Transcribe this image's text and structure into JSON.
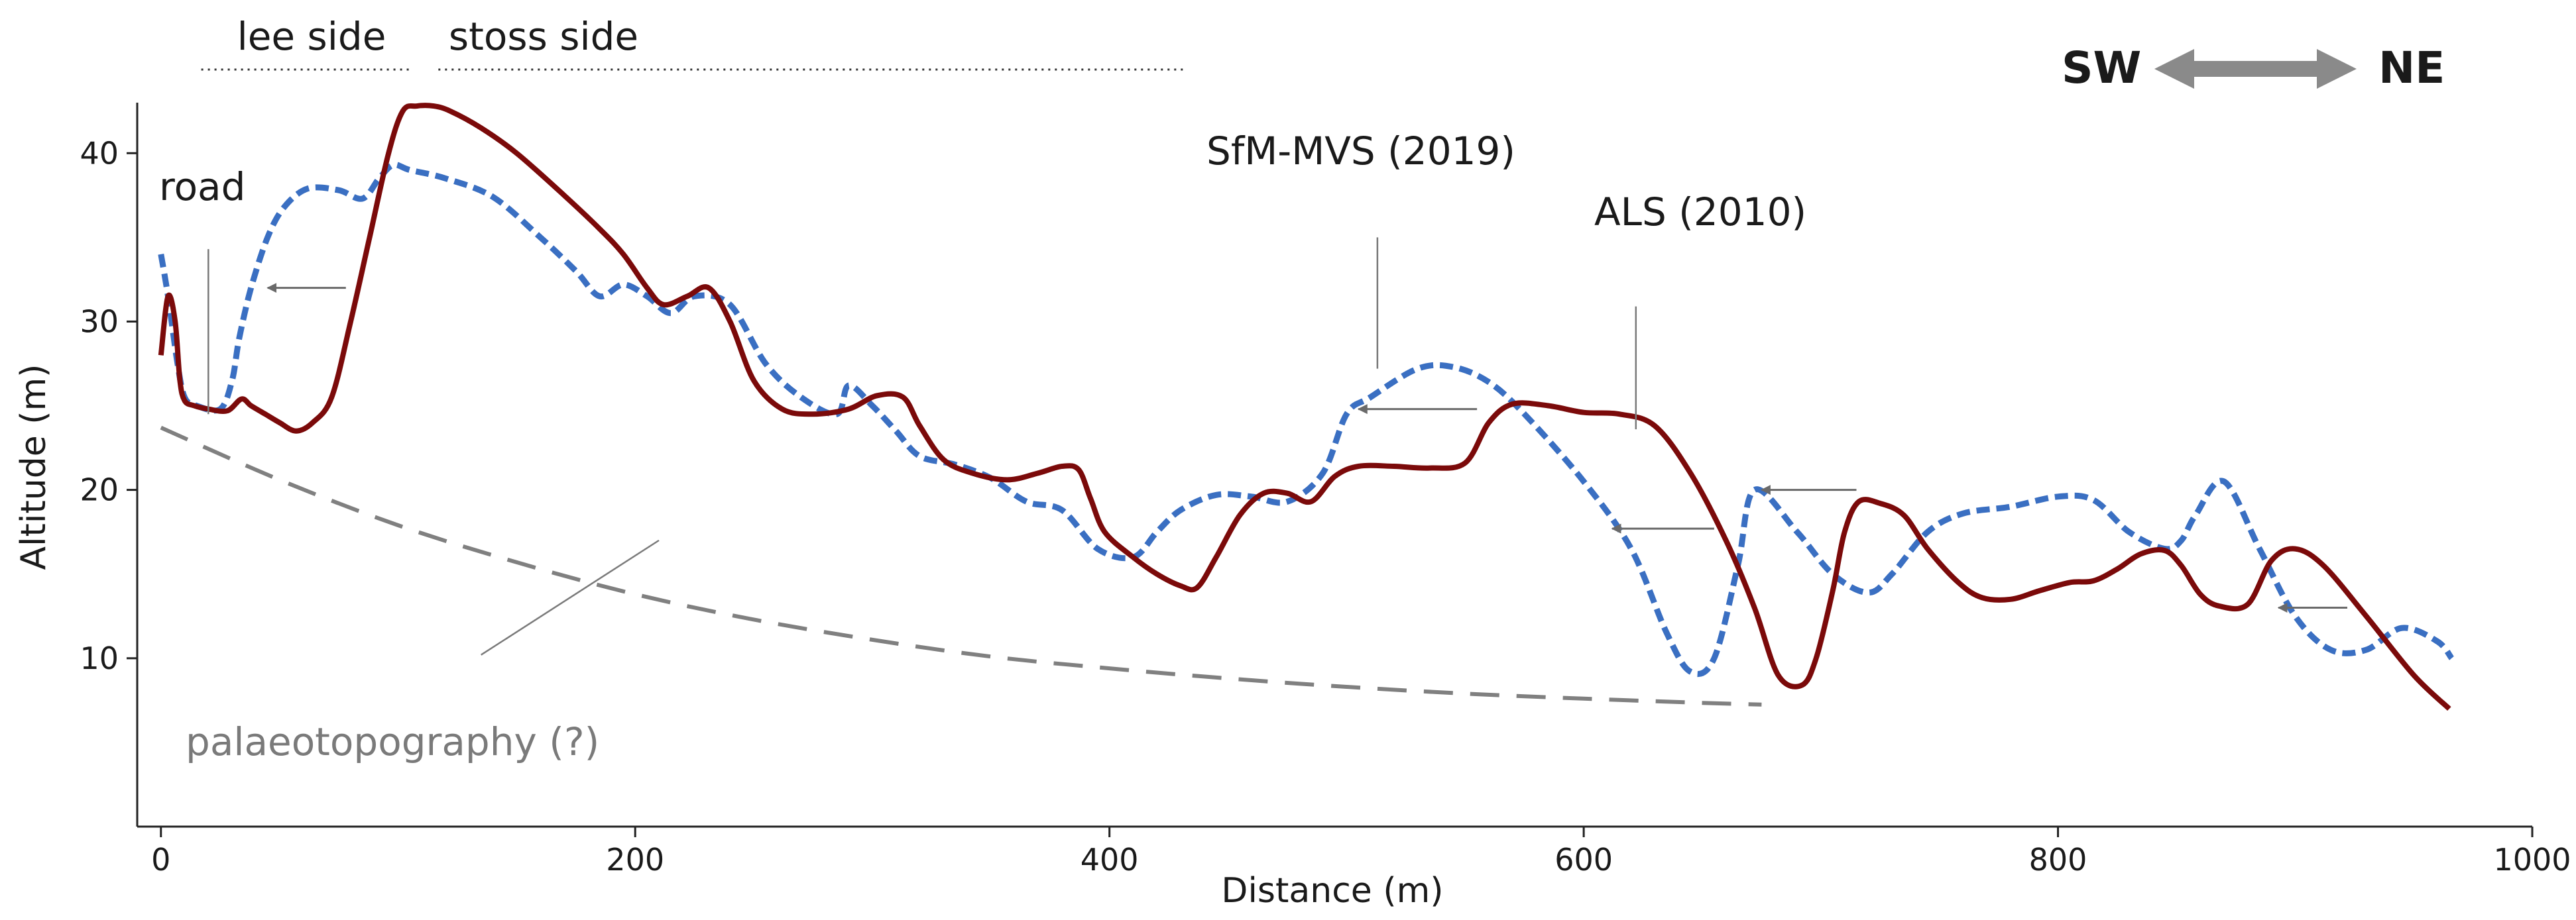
{
  "chart_data": {
    "type": "line",
    "xlabel": "Distance (m)",
    "ylabel": "Altitude (m)",
    "xlim": [
      -10,
      1000
    ],
    "ylim": [
      0,
      43
    ],
    "x_ticks": [
      0,
      200,
      400,
      600,
      800,
      1000
    ],
    "y_ticks": [
      10,
      20,
      30,
      40
    ],
    "colors": {
      "als": "#7b0a0a",
      "sfm": "#3a6fc2",
      "palaeo": "#808080",
      "arrow": "#6a6a6a",
      "dir_arrow": "#8a8a8a"
    },
    "series": [
      {
        "name": "ALS (2010)",
        "style": "solid",
        "x": [
          0,
          3,
          6,
          8,
          10,
          14,
          20,
          28,
          34,
          38,
          44,
          50,
          57,
          64,
          72,
          80,
          88,
          96,
          102,
          108,
          115,
          122,
          135,
          150,
          170,
          185,
          195,
          205,
          212,
          222,
          231,
          240,
          250,
          262,
          275,
          290,
          302,
          313,
          320,
          330,
          342,
          357,
          370,
          380,
          387,
          392,
          398,
          410,
          420,
          430,
          437,
          445,
          455,
          465,
          475,
          485,
          495,
          505,
          520,
          535,
          550,
          560,
          570,
          585,
          600,
          615,
          630,
          645,
          660,
          672,
          682,
          692,
          698,
          705,
          710,
          716,
          725,
          735,
          745,
          758,
          768,
          780,
          792,
          805,
          815,
          825,
          835,
          845,
          852,
          860,
          868,
          880,
          890,
          900,
          912,
          930,
          950,
          965
        ],
        "y": [
          28,
          31.5,
          30,
          26.5,
          25.3,
          25.0,
          24.8,
          24.7,
          25.4,
          25.0,
          24.5,
          24.0,
          23.5,
          24.0,
          25.5,
          30.0,
          35.0,
          40.0,
          42.5,
          42.8,
          42.8,
          42.5,
          41.5,
          40.0,
          37.5,
          35.5,
          34.0,
          32.0,
          31.0,
          31.5,
          32.0,
          30.0,
          26.5,
          24.8,
          24.5,
          24.8,
          25.6,
          25.5,
          23.8,
          21.8,
          21.0,
          20.6,
          21.0,
          21.4,
          21.2,
          19.5,
          17.5,
          16.0,
          15.0,
          14.3,
          14.2,
          16.0,
          18.5,
          19.8,
          19.8,
          19.3,
          20.8,
          21.4,
          21.4,
          21.3,
          21.6,
          24.0,
          25.1,
          25.0,
          24.6,
          24.5,
          23.8,
          21.0,
          17.0,
          13.0,
          9.0,
          8.4,
          10.0,
          14.0,
          17.5,
          19.3,
          19.2,
          18.5,
          16.5,
          14.5,
          13.6,
          13.5,
          14.0,
          14.5,
          14.6,
          15.3,
          16.2,
          16.4,
          15.5,
          13.8,
          13.1,
          13.2,
          15.8,
          16.5,
          15.5,
          12.5,
          9.0,
          7.0
        ]
      },
      {
        "name": "SfM-MVS (2019)",
        "style": "dashed",
        "x": [
          0,
          3,
          7,
          10,
          15,
          25,
          30,
          33,
          38,
          45,
          52,
          62,
          75,
          85,
          92,
          98,
          105,
          120,
          140,
          160,
          175,
          185,
          195,
          205,
          215,
          225,
          240,
          255,
          270,
          285,
          290,
          300,
          310,
          320,
          335,
          350,
          365,
          380,
          395,
          410,
          420,
          430,
          445,
          460,
          475,
          490,
          500,
          510,
          530,
          545,
          560,
          575,
          600,
          620,
          635,
          645,
          655,
          665,
          672,
          690,
          705,
          720,
          730,
          745,
          760,
          780,
          800,
          815,
          830,
          845,
          852,
          858,
          870,
          885,
          900,
          915,
          930,
          945,
          960,
          966
        ],
        "y": [
          34,
          31.5,
          27.5,
          25.5,
          25.0,
          24.8,
          26.5,
          29.0,
          32.0,
          35.0,
          36.8,
          37.9,
          37.8,
          37.3,
          38.5,
          39.3,
          39.0,
          38.5,
          37.4,
          35.0,
          33.0,
          31.5,
          32.2,
          31.5,
          30.5,
          31.5,
          31.0,
          27.5,
          25.5,
          24.5,
          26.2,
          25.0,
          23.5,
          22.0,
          21.5,
          20.7,
          19.3,
          18.8,
          16.5,
          16.0,
          17.5,
          18.8,
          19.7,
          19.6,
          19.3,
          21.0,
          24.5,
          25.5,
          27.2,
          27.3,
          26.4,
          24.5,
          20.5,
          16.5,
          11.5,
          9.2,
          10.0,
          15.5,
          20.0,
          17.5,
          15.0,
          13.9,
          15.0,
          17.5,
          18.6,
          19.0,
          19.6,
          19.4,
          17.5,
          16.5,
          17.0,
          18.5,
          20.5,
          16.5,
          12.5,
          10.5,
          10.5,
          11.8,
          11.0,
          10.0
        ]
      },
      {
        "name": "palaeotopography (?)",
        "style": "long-dash",
        "x": [
          0,
          50,
          100,
          150,
          200,
          250,
          300,
          350,
          400,
          450,
          500,
          550,
          600,
          650,
          675
        ],
        "y": [
          23.7,
          20.6,
          17.9,
          15.7,
          13.8,
          12.3,
          11.1,
          10.1,
          9.4,
          8.8,
          8.3,
          7.9,
          7.6,
          7.35,
          7.25
        ]
      }
    ],
    "shift_arrows": [
      {
        "from": [
          78,
          32
        ],
        "to": [
          45,
          32
        ]
      },
      {
        "from": [
          555,
          24.8
        ],
        "to": [
          505,
          24.8
        ]
      },
      {
        "from": [
          655,
          17.7
        ],
        "to": [
          612,
          17.7
        ]
      },
      {
        "from": [
          715,
          20
        ],
        "to": [
          675,
          20
        ]
      },
      {
        "from": [
          922,
          13
        ],
        "to": [
          893,
          13
        ]
      }
    ],
    "leader_lines": [
      {
        "from": [
          20,
          34.3
        ],
        "to": [
          20,
          24.5
        ]
      },
      {
        "from": [
          513,
          35
        ],
        "to": [
          513,
          27.2
        ]
      },
      {
        "from": [
          622,
          30.9
        ],
        "to": [
          622,
          23.6
        ]
      },
      {
        "from": [
          135,
          10.2
        ],
        "to": [
          210,
          17
        ]
      }
    ],
    "extents": [
      {
        "x1": 17,
        "x2": 105
      },
      {
        "x1": 117,
        "x2": 431
      }
    ],
    "annotations": {
      "lee_side": "lee side",
      "stoss_side": "stoss side",
      "road": "road",
      "sfm_label": "SfM-MVS (2019)",
      "als_label": "ALS (2010)",
      "palaeo_label": "palaeotopography (?)",
      "sw": "SW",
      "ne": "NE"
    }
  }
}
